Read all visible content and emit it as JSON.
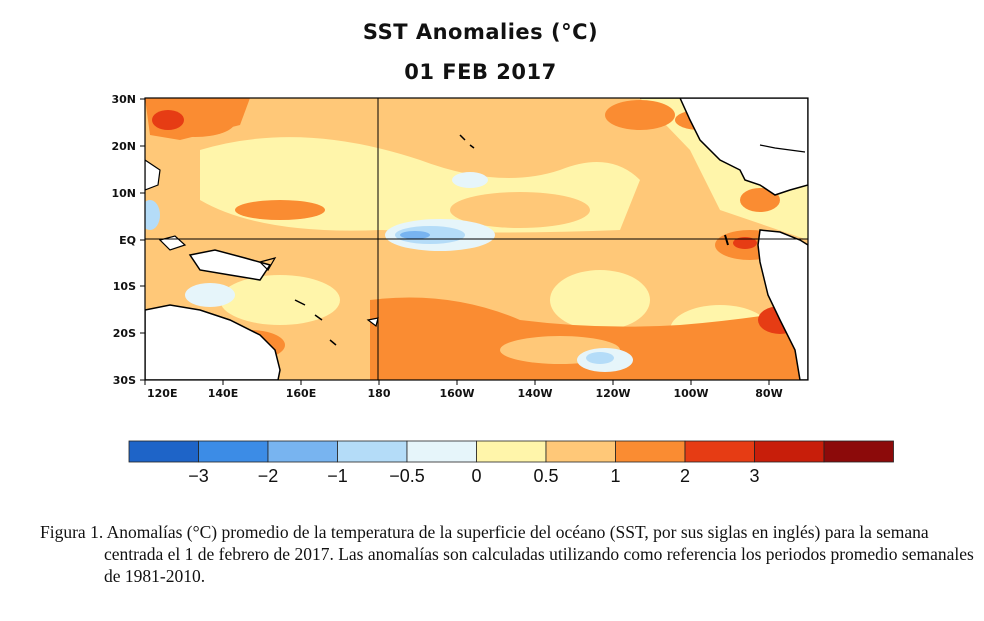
{
  "title": "SST Anomalies (°C)",
  "subtitle": "01 FEB 2017",
  "map": {
    "lat_labels": [
      "30N",
      "20N",
      "10N",
      "EQ",
      "10S",
      "20S",
      "30S"
    ],
    "lon_labels": [
      "120E",
      "140E",
      "160E",
      "180",
      "160W",
      "140W",
      "120W",
      "100W",
      "80W"
    ]
  },
  "colorbar": {
    "colors": [
      "#1e64c8",
      "#3c8ce6",
      "#78b4f0",
      "#b4dcf8",
      "#e6f5fa",
      "#fff5aa",
      "#ffc878",
      "#fa8c32",
      "#e63c14",
      "#c81e0a",
      "#8c0a0a"
    ],
    "tick_labels": [
      "−3",
      "−2",
      "−1",
      "−0.5",
      "0",
      "0.5",
      "1",
      "2",
      "3"
    ]
  },
  "caption": "Figura 1. Anomalías (°C) promedio de la temperatura de la superficie del océano (SST, por sus siglas en inglés) para la semana centrada el 1 de febrero de 2017. Las anomalías son calculadas utilizando como referencia los periodos promedio semanales de 1981-2010."
}
